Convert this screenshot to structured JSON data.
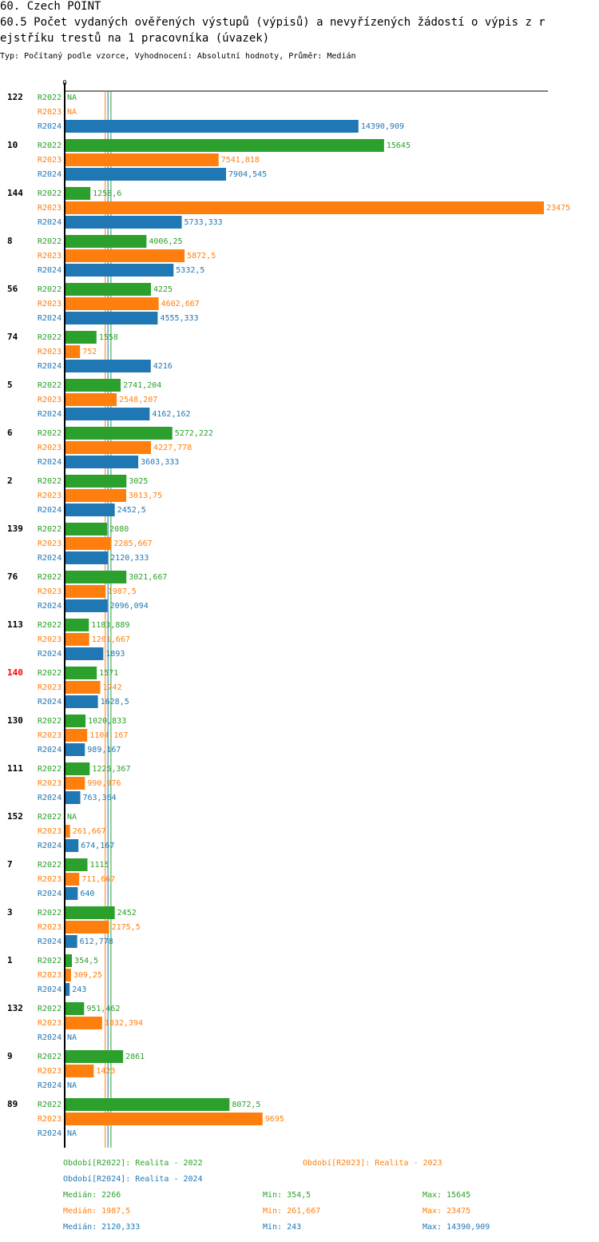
{
  "header": {
    "title_line1": "60. Czech POINT",
    "title_line2": "60.5 Počet vydaných ověřených výstupů (výpisů) a nevyřízených žádostí o výpis z r",
    "title_line3": "ejstříku trestů na 1 pracovníka (úvazek)",
    "subtitle": "Typ: Počítaný podle vzorce, Vyhodnocení: Absolutní hodnoty, Průměr: Medián"
  },
  "colors": {
    "R2022": "#2ca02c",
    "R2023": "#ff7f0e",
    "R2024": "#1f77b4",
    "highlight": "#ff0000"
  },
  "chart_data": {
    "type": "bar",
    "orientation": "horizontal",
    "title": "60.5 Počet vydaných ověřených výstupů (výpisů) a nevyřízených žádostí o výpis z rejstříku trestů na 1 pracovníka (úvazek)",
    "axis_zero_label": "0",
    "xlim": [
      0,
      23475
    ],
    "na_label": "NA",
    "series_names": [
      "R2022",
      "R2023",
      "R2024"
    ],
    "highlighted_group": "140",
    "groups": [
      {
        "id": "122",
        "values": [
          null,
          null,
          14390.909
        ],
        "labels": [
          "NA",
          "NA",
          "14390,909"
        ]
      },
      {
        "id": "10",
        "values": [
          15645,
          7541.818,
          7904.545
        ],
        "labels": [
          "15645",
          "7541,818",
          "7904,545"
        ]
      },
      {
        "id": "144",
        "values": [
          1258.6,
          23475,
          5733.333
        ],
        "labels": [
          "1258,6",
          "23475",
          "5733,333"
        ]
      },
      {
        "id": "8",
        "values": [
          4006.25,
          5872.5,
          5332.5
        ],
        "labels": [
          "4006,25",
          "5872,5",
          "5332,5"
        ]
      },
      {
        "id": "56",
        "values": [
          4225,
          4602.667,
          4555.333
        ],
        "labels": [
          "4225",
          "4602,667",
          "4555,333"
        ]
      },
      {
        "id": "74",
        "values": [
          1558,
          752,
          4216
        ],
        "labels": [
          "1558",
          "752",
          "4216"
        ]
      },
      {
        "id": "5",
        "values": [
          2741.204,
          2548.207,
          4162.162
        ],
        "labels": [
          "2741,204",
          "2548,207",
          "4162,162"
        ]
      },
      {
        "id": "6",
        "values": [
          5272.222,
          4227.778,
          3603.333
        ],
        "labels": [
          "5272,222",
          "4227,778",
          "3603,333"
        ]
      },
      {
        "id": "2",
        "values": [
          3025,
          3013.75,
          2452.5
        ],
        "labels": [
          "3025",
          "3013,75",
          "2452,5"
        ]
      },
      {
        "id": "139",
        "values": [
          2080,
          2285.667,
          2120.333
        ],
        "labels": [
          "2080",
          "2285,667",
          "2120,333"
        ]
      },
      {
        "id": "76",
        "values": [
          3021.667,
          1987.5,
          2096.094
        ],
        "labels": [
          "3021,667",
          "1987,5",
          "2096,094"
        ]
      },
      {
        "id": "113",
        "values": [
          1183.889,
          1201.667,
          1893
        ],
        "labels": [
          "1183,889",
          "1201,667",
          "1893"
        ]
      },
      {
        "id": "140",
        "values": [
          1571,
          1742,
          1628.5
        ],
        "labels": [
          "1571",
          "1742",
          "1628,5"
        ]
      },
      {
        "id": "130",
        "values": [
          1020.833,
          1104.167,
          989.167
        ],
        "labels": [
          "1020,833",
          "1104,167",
          "989,167"
        ]
      },
      {
        "id": "111",
        "values": [
          1225.367,
          990.976,
          763.364
        ],
        "labels": [
          "1225,367",
          "990,976",
          "763,364"
        ]
      },
      {
        "id": "152",
        "values": [
          null,
          261.667,
          674.167
        ],
        "labels": [
          "NA",
          "261,667",
          "674,167"
        ]
      },
      {
        "id": "7",
        "values": [
          1115,
          711.667,
          640
        ],
        "labels": [
          "1115",
          "711,667",
          "640"
        ]
      },
      {
        "id": "3",
        "values": [
          2452,
          2175.5,
          612.778
        ],
        "labels": [
          "2452",
          "2175,5",
          "612,778"
        ]
      },
      {
        "id": "1",
        "values": [
          354.5,
          309.25,
          243
        ],
        "labels": [
          "354,5",
          "309,25",
          "243"
        ]
      },
      {
        "id": "132",
        "values": [
          951.462,
          1832.394,
          null
        ],
        "labels": [
          "951,462",
          "1832,394",
          "NA"
        ]
      },
      {
        "id": "9",
        "values": [
          2861,
          1423,
          null
        ],
        "labels": [
          "2861",
          "1423",
          "NA"
        ]
      },
      {
        "id": "89",
        "values": [
          8072.5,
          9695,
          null
        ],
        "labels": [
          "8072,5",
          "9695",
          "NA"
        ]
      }
    ],
    "medians": {
      "R2022": 2266,
      "R2023": 1987.5,
      "R2024": 2120.333
    }
  },
  "legend": {
    "period_2022": "Období[R2022]: Realita - 2022",
    "period_2023": "Období[R2023]: Realita - 2023",
    "period_2024": "Období[R2024]: Realita - 2024",
    "stats": [
      {
        "median": "Medián: 2266",
        "min": "Min: 354,5",
        "max": "Max: 15645"
      },
      {
        "median": "Medián: 1987,5",
        "min": "Min: 261,667",
        "max": "Max: 23475"
      },
      {
        "median": "Medián: 2120,333",
        "min": "Min: 243",
        "max": "Max: 14390,909"
      }
    ]
  }
}
